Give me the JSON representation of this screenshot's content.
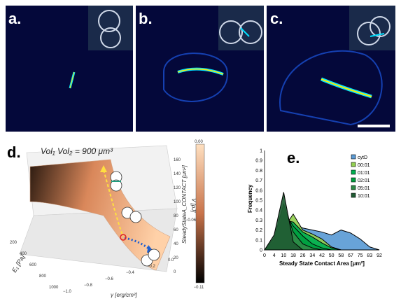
{
  "figure": {
    "panel_a": {
      "label": "a."
    },
    "panel_b": {
      "label": "b."
    },
    "panel_c": {
      "label": "c."
    },
    "panel_d": {
      "label": "d.",
      "equation": "Vol₁ Vol₂ = 900 μm³",
      "x_axis_label": "E₁ [Pa]",
      "x_ticks": [
        "200",
        "400",
        "600",
        "800",
        "1000"
      ],
      "y_axis_label": "γ [erg/cm²]",
      "y_ticks": [
        "−1.0",
        "−0.8",
        "−0.6",
        "−0.4",
        "−0.2",
        "0.0"
      ],
      "z_axis_label": "SteadyStateA_CONTACT [μm²]",
      "z_ticks": [
        "0",
        "20",
        "40",
        "60",
        "80",
        "100",
        "120",
        "140",
        "160"
      ],
      "colorbar_label": "V [pJ]",
      "colorbar_ticks": [
        "0.00",
        "−0.06",
        "−0.11"
      ]
    },
    "panel_e": {
      "label": "e."
    }
  },
  "chart_data": {
    "type": "area",
    "xlabel": "Steady State Contact Area [μm²]",
    "ylabel": "Frequency",
    "categories": [
      "0",
      "4",
      "10",
      "18",
      "26",
      "34",
      "42",
      "50",
      "58",
      "67",
      "75",
      "83",
      "92"
    ],
    "ylim": [
      0,
      1
    ],
    "yticks": [
      "0",
      "0.1",
      "0.2",
      "0.3",
      "0.4",
      "0.5",
      "0.6",
      "0.7",
      "0.8",
      "0.9",
      "1"
    ],
    "legend_position": "top-right",
    "series": [
      {
        "name": "cytD",
        "color": "#5b9bd5",
        "values": [
          0,
          0.02,
          0.13,
          0.26,
          0.22,
          0.2,
          0.18,
          0.15,
          0.2,
          0.17,
          0.11,
          0.03,
          0
        ]
      },
      {
        "name": "00:01",
        "color": "#92d050",
        "values": [
          0,
          0.04,
          0.22,
          0.36,
          0.2,
          0.16,
          0.11,
          0.03,
          0,
          0,
          0,
          0,
          0
        ]
      },
      {
        "name": "01:01",
        "color": "#00b050",
        "values": [
          0,
          0.05,
          0.3,
          0.28,
          0.18,
          0.13,
          0.07,
          0.02,
          0,
          0,
          0,
          0,
          0
        ]
      },
      {
        "name": "02:01",
        "color": "#00a040",
        "values": [
          0,
          0.08,
          0.38,
          0.24,
          0.14,
          0.06,
          0.02,
          0,
          0,
          0,
          0,
          0,
          0
        ]
      },
      {
        "name": "05:01",
        "color": "#2e8b47",
        "values": [
          0,
          0.12,
          0.46,
          0.18,
          0.06,
          0.02,
          0,
          0,
          0,
          0,
          0,
          0,
          0
        ]
      },
      {
        "name": "10:01",
        "color": "#1f5c33",
        "values": [
          0,
          0.15,
          0.58,
          0.08,
          0,
          0,
          0,
          0,
          0,
          0,
          0,
          0,
          0
        ]
      }
    ]
  }
}
